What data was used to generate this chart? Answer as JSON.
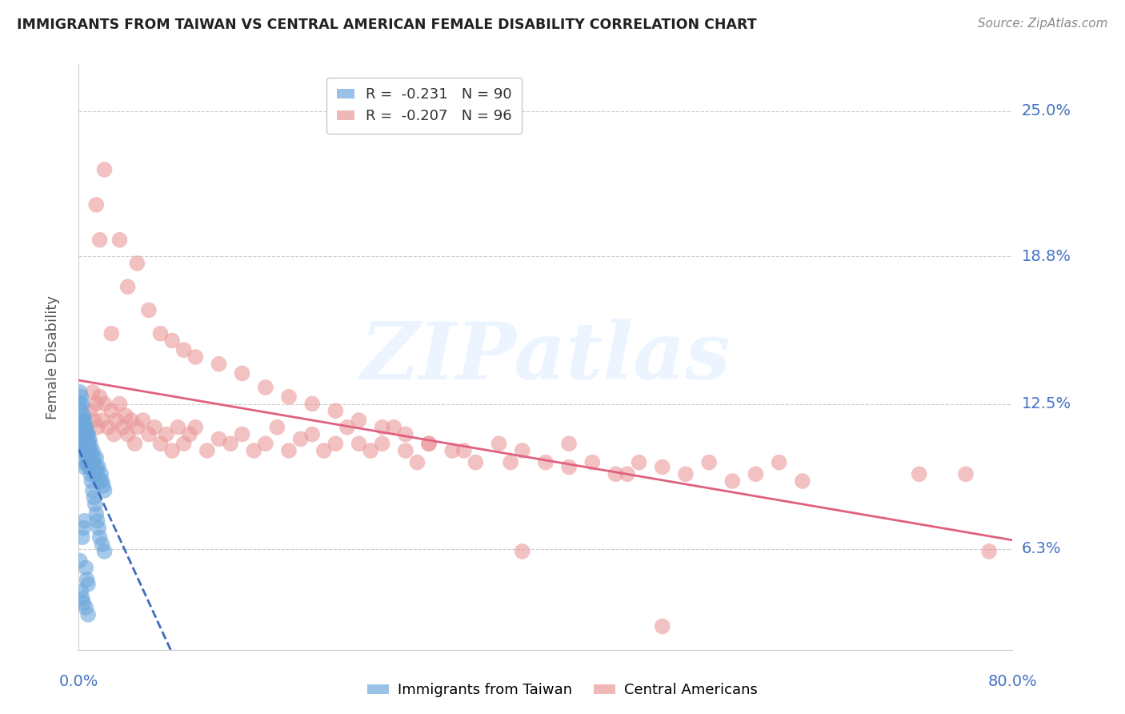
{
  "title": "IMMIGRANTS FROM TAIWAN VS CENTRAL AMERICAN FEMALE DISABILITY CORRELATION CHART",
  "source": "Source: ZipAtlas.com",
  "ylabel": "Female Disability",
  "ytick_labels": [
    "6.3%",
    "12.5%",
    "18.8%",
    "25.0%"
  ],
  "ytick_values": [
    0.063,
    0.125,
    0.188,
    0.25
  ],
  "xmin": 0.0,
  "xmax": 0.8,
  "ymin": 0.02,
  "ymax": 0.27,
  "legend_taiwan": "R =  -0.231   N = 90",
  "legend_central": "R =  -0.207   N = 96",
  "taiwan_color": "#6fa8dc",
  "central_color": "#ea9999",
  "trendline_taiwan_color": "#3d6bbf",
  "trendline_central_color": "#e06080",
  "background_color": "#ffffff",
  "grid_color": "#cccccc",
  "watermark": "ZIPatlas",
  "taiwan_x": [
    0.001,
    0.001,
    0.002,
    0.002,
    0.002,
    0.003,
    0.003,
    0.003,
    0.003,
    0.004,
    0.004,
    0.004,
    0.004,
    0.005,
    0.005,
    0.005,
    0.005,
    0.006,
    0.006,
    0.006,
    0.006,
    0.007,
    0.007,
    0.007,
    0.007,
    0.008,
    0.008,
    0.008,
    0.009,
    0.009,
    0.009,
    0.01,
    0.01,
    0.01,
    0.011,
    0.011,
    0.012,
    0.012,
    0.013,
    0.013,
    0.014,
    0.015,
    0.015,
    0.016,
    0.017,
    0.018,
    0.019,
    0.02,
    0.021,
    0.022,
    0.001,
    0.002,
    0.002,
    0.003,
    0.003,
    0.004,
    0.004,
    0.005,
    0.005,
    0.006,
    0.006,
    0.007,
    0.007,
    0.008,
    0.008,
    0.009,
    0.009,
    0.01,
    0.011,
    0.012,
    0.013,
    0.014,
    0.015,
    0.016,
    0.017,
    0.018,
    0.02,
    0.022,
    0.003,
    0.004,
    0.005,
    0.006,
    0.007,
    0.008,
    0.001,
    0.002,
    0.003,
    0.004,
    0.006,
    0.008
  ],
  "taiwan_y": [
    0.115,
    0.125,
    0.118,
    0.108,
    0.112,
    0.115,
    0.11,
    0.118,
    0.105,
    0.112,
    0.108,
    0.118,
    0.1,
    0.11,
    0.105,
    0.112,
    0.098,
    0.108,
    0.11,
    0.105,
    0.115,
    0.108,
    0.112,
    0.1,
    0.105,
    0.108,
    0.1,
    0.112,
    0.105,
    0.11,
    0.098,
    0.108,
    0.1,
    0.105,
    0.098,
    0.102,
    0.1,
    0.105,
    0.098,
    0.102,
    0.095,
    0.098,
    0.102,
    0.095,
    0.098,
    0.092,
    0.095,
    0.092,
    0.09,
    0.088,
    0.13,
    0.122,
    0.128,
    0.118,
    0.125,
    0.115,
    0.12,
    0.112,
    0.118,
    0.108,
    0.115,
    0.105,
    0.112,
    0.102,
    0.108,
    0.098,
    0.105,
    0.095,
    0.092,
    0.088,
    0.085,
    0.082,
    0.078,
    0.075,
    0.072,
    0.068,
    0.065,
    0.062,
    0.068,
    0.072,
    0.075,
    0.055,
    0.05,
    0.048,
    0.058,
    0.045,
    0.042,
    0.04,
    0.038,
    0.035
  ],
  "central_x": [
    0.01,
    0.012,
    0.013,
    0.015,
    0.016,
    0.018,
    0.02,
    0.022,
    0.025,
    0.028,
    0.03,
    0.032,
    0.035,
    0.038,
    0.04,
    0.042,
    0.045,
    0.048,
    0.05,
    0.055,
    0.06,
    0.065,
    0.07,
    0.075,
    0.08,
    0.085,
    0.09,
    0.095,
    0.1,
    0.11,
    0.12,
    0.13,
    0.14,
    0.15,
    0.16,
    0.17,
    0.18,
    0.19,
    0.2,
    0.21,
    0.22,
    0.23,
    0.24,
    0.25,
    0.26,
    0.27,
    0.28,
    0.29,
    0.3,
    0.32,
    0.34,
    0.36,
    0.38,
    0.4,
    0.42,
    0.44,
    0.46,
    0.48,
    0.5,
    0.52,
    0.54,
    0.56,
    0.58,
    0.6,
    0.015,
    0.018,
    0.022,
    0.028,
    0.035,
    0.042,
    0.05,
    0.06,
    0.07,
    0.08,
    0.09,
    0.1,
    0.12,
    0.14,
    0.16,
    0.18,
    0.2,
    0.22,
    0.24,
    0.26,
    0.28,
    0.3,
    0.33,
    0.37,
    0.42,
    0.47,
    0.38,
    0.5,
    0.62,
    0.72,
    0.78,
    0.76
  ],
  "central_y": [
    0.122,
    0.13,
    0.118,
    0.125,
    0.115,
    0.128,
    0.118,
    0.125,
    0.115,
    0.122,
    0.112,
    0.118,
    0.125,
    0.115,
    0.12,
    0.112,
    0.118,
    0.108,
    0.115,
    0.118,
    0.112,
    0.115,
    0.108,
    0.112,
    0.105,
    0.115,
    0.108,
    0.112,
    0.115,
    0.105,
    0.11,
    0.108,
    0.112,
    0.105,
    0.108,
    0.115,
    0.105,
    0.11,
    0.112,
    0.105,
    0.108,
    0.115,
    0.108,
    0.105,
    0.108,
    0.115,
    0.105,
    0.1,
    0.108,
    0.105,
    0.1,
    0.108,
    0.105,
    0.1,
    0.108,
    0.1,
    0.095,
    0.1,
    0.098,
    0.095,
    0.1,
    0.092,
    0.095,
    0.1,
    0.21,
    0.195,
    0.225,
    0.155,
    0.195,
    0.175,
    0.185,
    0.165,
    0.155,
    0.152,
    0.148,
    0.145,
    0.142,
    0.138,
    0.132,
    0.128,
    0.125,
    0.122,
    0.118,
    0.115,
    0.112,
    0.108,
    0.105,
    0.1,
    0.098,
    0.095,
    0.062,
    0.03,
    0.092,
    0.095,
    0.062,
    0.095
  ]
}
